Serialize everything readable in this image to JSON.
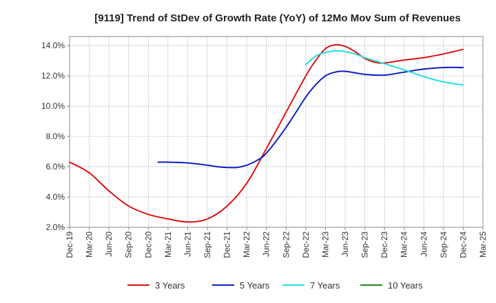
{
  "chart_data": {
    "type": "line",
    "title": "[9119]  Trend of StDev of Growth Rate (YoY) of 12Mo Mov Sum of Revenues",
    "xlabel": "",
    "ylabel": "",
    "categories": [
      "Dec-19",
      "Mar-20",
      "Jun-20",
      "Sep-20",
      "Dec-20",
      "Mar-21",
      "Jun-21",
      "Sep-21",
      "Dec-21",
      "Mar-22",
      "Jun-22",
      "Sep-22",
      "Dec-22",
      "Mar-23",
      "Jun-23",
      "Sep-23",
      "Dec-23",
      "Mar-24",
      "Jun-24",
      "Sep-24",
      "Dec-24",
      "Mar-25"
    ],
    "y_tick_labels": [
      "2.0%",
      "4.0%",
      "6.0%",
      "8.0%",
      "10.0%",
      "12.0%",
      "14.0%"
    ],
    "y_ticks": [
      2,
      4,
      6,
      8,
      10,
      12,
      14
    ],
    "ylim": [
      2.0,
      14.6
    ],
    "grid": true,
    "legend_position": "bottom",
    "series": [
      {
        "name": "3 Years",
        "color": "#dd1111",
        "x": [
          0,
          1,
          2,
          3,
          4,
          5,
          6,
          7,
          8,
          9,
          10,
          11,
          12,
          12.5,
          13,
          13.5,
          14,
          14.5,
          15,
          15.5,
          16,
          17,
          18,
          19,
          19.5,
          20
        ],
        "values": [
          6.3,
          5.6,
          4.4,
          3.4,
          2.85,
          2.55,
          2.35,
          2.55,
          3.4,
          4.9,
          7.2,
          9.6,
          12.0,
          13.0,
          13.8,
          14.05,
          13.95,
          13.6,
          13.15,
          12.9,
          12.85,
          13.05,
          13.2,
          13.45,
          13.6,
          13.75
        ]
      },
      {
        "name": "5 Years",
        "color": "#0f1fbf",
        "x": [
          4.5,
          5,
          6,
          7,
          7.5,
          8,
          8.5,
          9,
          9.5,
          10,
          11,
          12,
          12.5,
          13,
          13.5,
          14,
          15,
          16,
          17,
          18,
          19,
          20
        ],
        "values": [
          6.3,
          6.3,
          6.25,
          6.1,
          6.0,
          5.95,
          5.95,
          6.1,
          6.4,
          6.9,
          8.6,
          10.6,
          11.4,
          12.0,
          12.25,
          12.3,
          12.1,
          12.05,
          12.25,
          12.45,
          12.55,
          12.55
        ]
      },
      {
        "name": "7 Years",
        "color": "#22dddd",
        "x": [
          12,
          12.5,
          13,
          13.5,
          14,
          14.5,
          15,
          16,
          17,
          18,
          19,
          20
        ],
        "values": [
          12.75,
          13.3,
          13.55,
          13.65,
          13.6,
          13.45,
          13.2,
          12.8,
          12.4,
          11.95,
          11.6,
          11.4
        ]
      },
      {
        "name": "10 Years",
        "color": "#1a8a1a",
        "x": [],
        "values": []
      }
    ]
  }
}
